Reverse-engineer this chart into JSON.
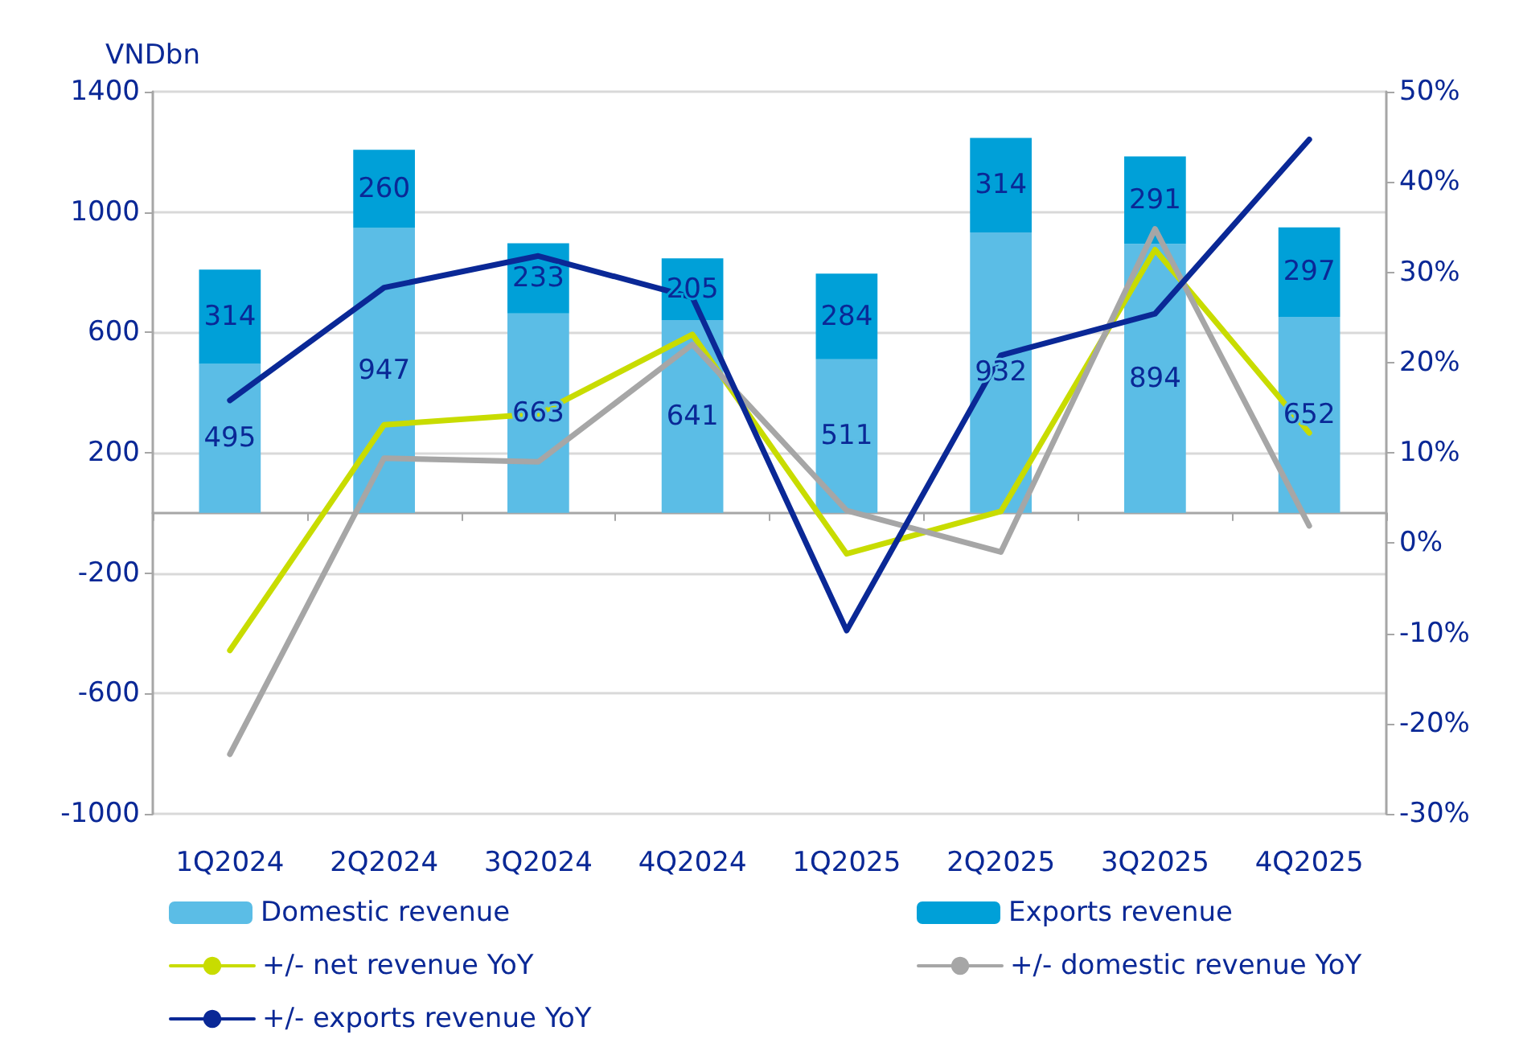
{
  "chart_data": {
    "type": "bar",
    "stacked": true,
    "ylabel": "VNDbn",
    "categories": [
      "1Q2024",
      "2Q2024",
      "3Q2024",
      "4Q2024",
      "1Q2025",
      "2Q2025",
      "3Q2025",
      "4Q2025"
    ],
    "series": [
      {
        "name": "Domestic revenue",
        "color": "#5bbde6",
        "values": [
          495,
          947,
          663,
          641,
          511,
          932,
          894,
          652
        ],
        "value_labels": [
          "495",
          "947",
          "663",
          "641",
          "511",
          "932",
          "894",
          "652"
        ]
      },
      {
        "name": "Exports revenue",
        "color": "#00a0d8",
        "values": [
          314,
          260,
          233,
          205,
          284,
          314,
          291,
          297
        ],
        "value_labels": [
          "314",
          "260",
          "233",
          "205",
          "284",
          "314",
          "291",
          "297"
        ]
      },
      {
        "name": "+/- net revenue YoY",
        "type": "line",
        "axis": "y2",
        "color": "#c8dc00",
        "values": [
          -11.9,
          13.1,
          14.3,
          23.1,
          -1.2,
          3.5,
          32.5,
          12.2
        ]
      },
      {
        "name": "+/- domestic revenue YoY",
        "type": "line",
        "axis": "y2",
        "color": "#a6a6a6",
        "values": [
          -23.4,
          9.4,
          9.0,
          22.0,
          3.6,
          -1.0,
          34.8,
          1.9
        ]
      },
      {
        "name": "+/- exports revenue YoY",
        "type": "line",
        "axis": "y2",
        "color": "#0a2896",
        "values": [
          15.8,
          28.3,
          31.8,
          27.2,
          -9.7,
          20.8,
          25.4,
          44.7
        ]
      }
    ],
    "ylim": [
      -1000,
      1400
    ],
    "yticks": [
      -1000,
      -600,
      -200,
      200,
      600,
      1000,
      1400
    ],
    "y2lim": [
      -30,
      50
    ],
    "y2ticks": [
      {
        "value": -30,
        "label": "-30%"
      },
      {
        "value": -20,
        "label": "-20%"
      },
      {
        "value": -10,
        "label": "-10%"
      },
      {
        "value": 0,
        "label": "0%"
      },
      {
        "value": 10,
        "label": "10%"
      },
      {
        "value": 20,
        "label": "20%"
      },
      {
        "value": 30,
        "label": "30%"
      },
      {
        "value": 40,
        "label": "40%"
      },
      {
        "value": 50,
        "label": "50%"
      }
    ],
    "grid": "y",
    "legend": "bottom",
    "marker": "none",
    "line_style": "solid"
  }
}
